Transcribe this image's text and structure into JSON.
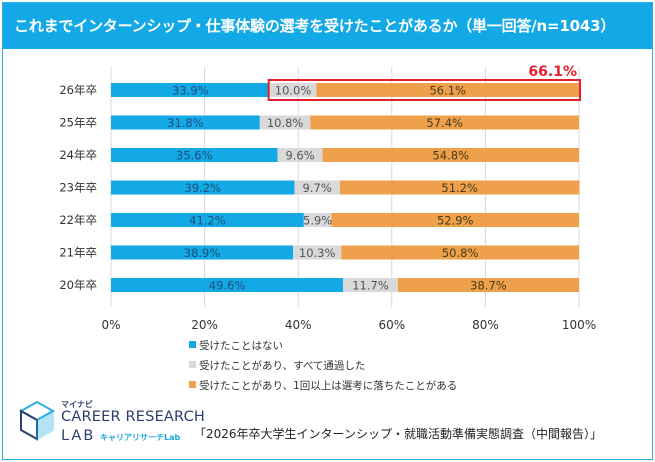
{
  "header": {
    "title": "これまでインターンシップ・仕事体験の選考を受けたことがあるか（単一回答/n=1043）"
  },
  "colors": {
    "brand": "#13a9e6",
    "not_taken": "#13a9e6",
    "all_passed": "#d9d9d9",
    "failed": "#eea04b",
    "highlight": "#e5202e"
  },
  "chart_data": {
    "type": "bar",
    "orientation": "horizontal",
    "stacked": true,
    "percent": true,
    "categories": [
      "26年卒",
      "25年卒",
      "24年卒",
      "23年卒",
      "22年卒",
      "21年卒",
      "20年卒"
    ],
    "series": [
      {
        "name": "受けたことはない",
        "values": [
          33.9,
          31.8,
          35.6,
          39.2,
          41.2,
          38.9,
          49.6
        ],
        "labels": [
          "33.9%",
          "31.8%",
          "35.6%",
          "39.2%",
          "41.2%",
          "38.9%",
          "49.6%"
        ]
      },
      {
        "name": "受けたことがあり、すべて通過した",
        "values": [
          10.0,
          10.8,
          9.6,
          9.7,
          5.9,
          10.3,
          11.7
        ],
        "labels": [
          "10.0%",
          "10.8%",
          "9.6%",
          "9.7%",
          "5.9%",
          "10.3%",
          "11.7%"
        ]
      },
      {
        "name": "受けたことがあり、1回以上は選考に落ちたことがある",
        "values": [
          56.1,
          57.4,
          54.8,
          51.2,
          52.9,
          50.8,
          38.7
        ],
        "labels": [
          "56.1%",
          "57.4%",
          "54.8%",
          "51.2%",
          "52.9%",
          "50.8%",
          "38.7%"
        ]
      }
    ],
    "xlim": [
      0,
      100
    ],
    "x_ticks": [
      0,
      20,
      40,
      60,
      80,
      100
    ],
    "x_tick_labels": [
      "0%",
      "20%",
      "40%",
      "60%",
      "80%",
      "100%"
    ],
    "grid": true,
    "legend_position": "bottom",
    "annotation": {
      "text": "66.1%",
      "category": "26年卒",
      "covers_series": [
        1,
        2
      ]
    }
  },
  "footer": {
    "logo_small": "マイナビ",
    "logo_main": "CAREER RESEARCH",
    "logo_lab": "LAB",
    "logo_sub": "キャリアリサーチLab",
    "source": "「2026年卒大学生インターンシップ・就職活動準備実態調査（中間報告）」"
  }
}
